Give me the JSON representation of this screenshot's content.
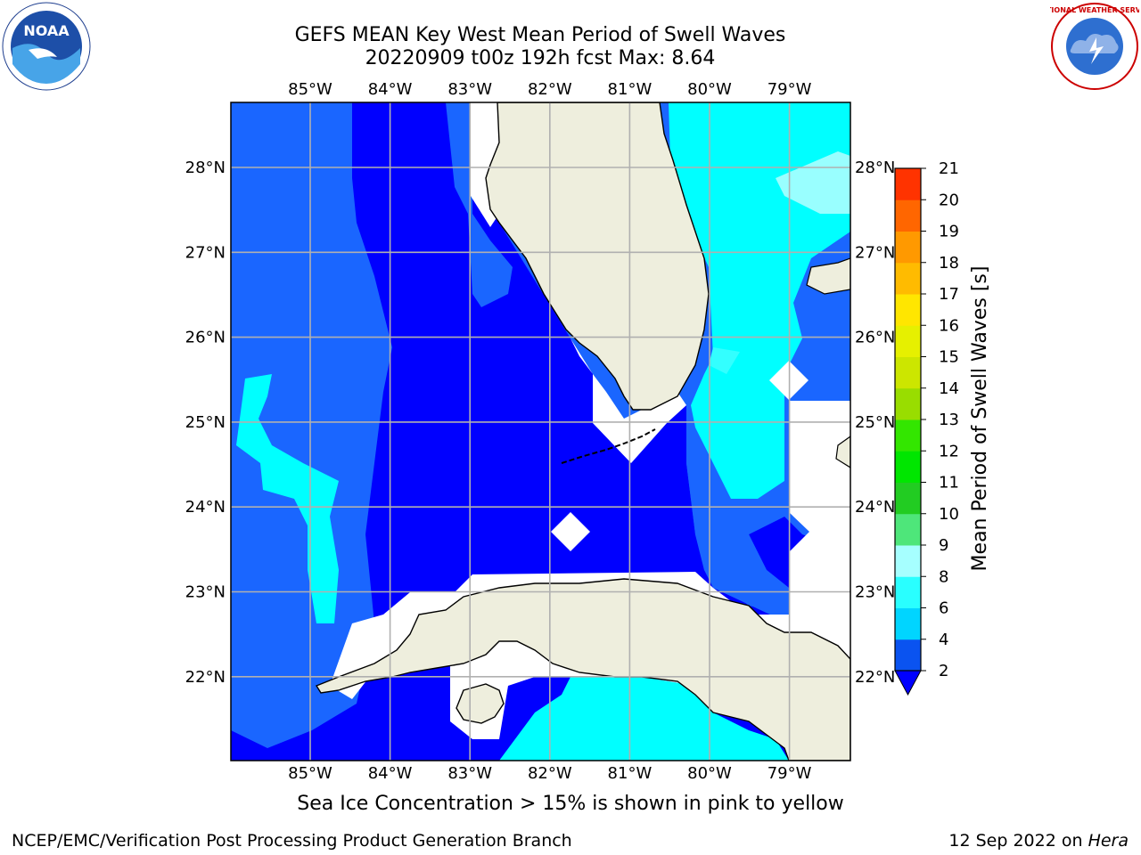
{
  "title": {
    "line1": "GEFS MEAN Key West Mean Period of Swell Waves",
    "line2": "20220909 t00z 192h fcst   Max: 8.64"
  },
  "map": {
    "lon_labels": [
      "85°W",
      "84°W",
      "83°W",
      "82°W",
      "81°W",
      "80°W",
      "79°W"
    ],
    "lat_labels": [
      "28°N",
      "27°N",
      "26°N",
      "25°N",
      "24°N",
      "23°N",
      "22°N"
    ],
    "lon_values": [
      -85,
      -84,
      -83,
      -82,
      -81,
      -80,
      -79
    ],
    "lat_values": [
      28,
      27,
      26,
      25,
      24,
      23,
      22
    ],
    "colors": {
      "ocean_deep": "#0000ff",
      "ocean_mid": "#1a66ff",
      "ocean_cyan": "#00ffff",
      "ocean_lightcyan": "#33ffff",
      "ocean_palecyan": "#99ffff",
      "land": "#eeeedd"
    }
  },
  "colorbar": {
    "label": "Mean Period of Swell Waves [s]",
    "ticks": [
      "2",
      "4",
      "6",
      "8",
      "9",
      "10",
      "11",
      "12",
      "13",
      "14",
      "15",
      "16",
      "17",
      "18",
      "19",
      "20",
      "21"
    ],
    "colors": [
      "#0a53f0",
      "#00d5ff",
      "#29ffff",
      "#a6ffff",
      "#4ee67a",
      "#22cc22",
      "#00e600",
      "#33e600",
      "#99dd00",
      "#cce600",
      "#e6f000",
      "#ffe600",
      "#ffbb00",
      "#ff9900",
      "#ff6600",
      "#ff3300",
      "#ff0000"
    ]
  },
  "footer": {
    "note": "Sea Ice Concentration > 15% is shown in pink to yellow",
    "credit_left": "NCEP/EMC/Verification Post Processing Product Generation Branch",
    "date": "12 Sep 2022 on",
    "host": "Hera"
  },
  "logos": {
    "noaa_text": "NOAA",
    "nws_text": "NATIONAL WEATHER SERVICE"
  }
}
